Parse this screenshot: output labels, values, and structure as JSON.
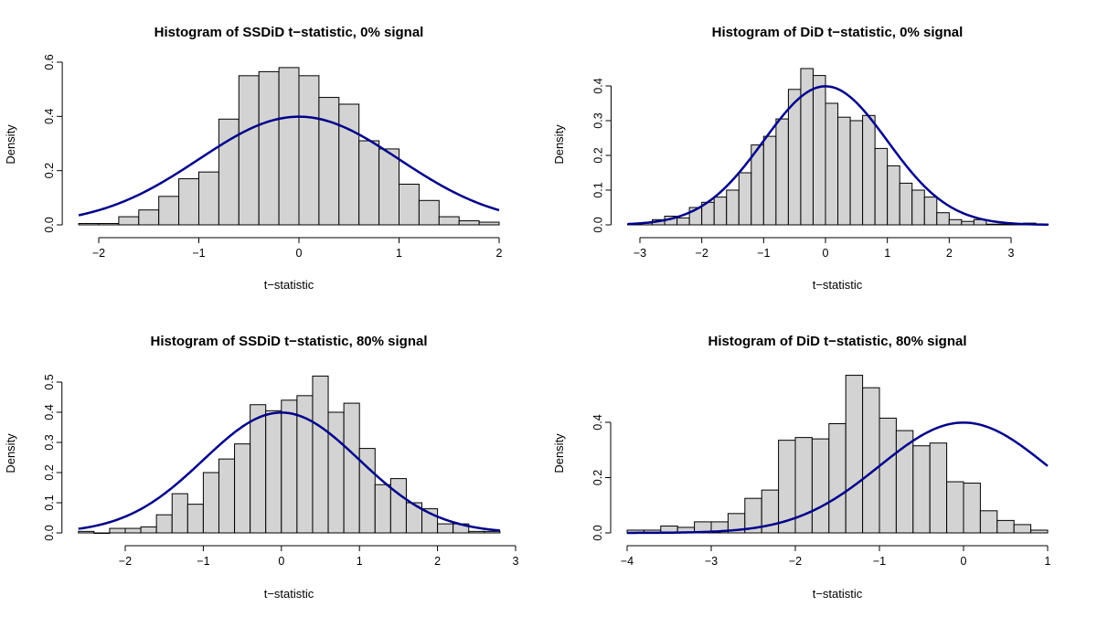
{
  "chart_data": [
    {
      "type": "histogram",
      "title": "Histogram of SSDiD t−statistic, 0% signal",
      "xlabel": "t−statistic",
      "ylabel": "Density",
      "xlim": [
        -2.2,
        2
      ],
      "ylim": [
        0,
        0.6
      ],
      "xticks": [
        -2,
        -1,
        0,
        1,
        2
      ],
      "xtick_labels": [
        "−2",
        "−1",
        "0",
        "1",
        "2"
      ],
      "yticks": [
        0.0,
        0.2,
        0.4,
        0.6
      ],
      "ytick_labels": [
        "0.0",
        "0.2",
        "0.4",
        "0.6"
      ],
      "bin_start": -2.2,
      "bin_width": 0.2,
      "values": [
        0.005,
        0.005,
        0.03,
        0.055,
        0.105,
        0.17,
        0.195,
        0.39,
        0.55,
        0.565,
        0.58,
        0.55,
        0.47,
        0.445,
        0.31,
        0.28,
        0.15,
        0.09,
        0.03,
        0.015,
        0.01
      ],
      "curve": "standard normal density"
    },
    {
      "type": "histogram",
      "title": "Histogram of DiD t−statistic, 0% signal",
      "xlabel": "t−statistic",
      "ylabel": "Density",
      "xlim": [
        -3.2,
        3.6
      ],
      "ylim": [
        0,
        0.4
      ],
      "xticks": [
        -3,
        -2,
        -1,
        0,
        1,
        2,
        3
      ],
      "xtick_labels": [
        "−3",
        "−2",
        "−1",
        "0",
        "1",
        "2",
        "3"
      ],
      "yticks": [
        0.0,
        0.1,
        0.2,
        0.3,
        0.4
      ],
      "ytick_labels": [
        "0.0",
        "0.1",
        "0.2",
        "0.3",
        "0.4"
      ],
      "bin_start": -3.2,
      "bin_width": 0.2,
      "values": [
        0.002,
        0.005,
        0.015,
        0.025,
        0.02,
        0.05,
        0.065,
        0.08,
        0.1,
        0.15,
        0.23,
        0.255,
        0.305,
        0.39,
        0.45,
        0.43,
        0.35,
        0.31,
        0.3,
        0.315,
        0.22,
        0.17,
        0.12,
        0.1,
        0.08,
        0.035,
        0.015,
        0.01,
        0.015,
        0.002,
        0.002,
        0.002,
        0.005,
        0.002
      ],
      "curve": "standard normal density"
    },
    {
      "type": "histogram",
      "title": "Histogram of SSDiD t−statistic, 80% signal",
      "xlabel": "t−statistic",
      "ylabel": "Density",
      "xlim": [
        -2.6,
        2.8
      ],
      "ylim": [
        0,
        0.5
      ],
      "xticks": [
        -2,
        -1,
        0,
        1,
        2,
        3
      ],
      "xtick_labels": [
        "−2",
        "−1",
        "0",
        "1",
        "2",
        "3"
      ],
      "yticks": [
        0.0,
        0.1,
        0.2,
        0.3,
        0.4,
        0.5
      ],
      "ytick_labels": [
        "0.0",
        "0.1",
        "0.2",
        "0.3",
        "0.4",
        "0.5"
      ],
      "bin_start": -2.6,
      "bin_width": 0.2,
      "values": [
        0.005,
        0.0,
        0.015,
        0.015,
        0.02,
        0.06,
        0.13,
        0.095,
        0.2,
        0.245,
        0.295,
        0.425,
        0.405,
        0.44,
        0.455,
        0.52,
        0.4,
        0.43,
        0.28,
        0.16,
        0.18,
        0.1,
        0.08,
        0.03,
        0.03,
        0.005,
        0.005
      ],
      "curve": "standard normal density"
    },
    {
      "type": "histogram",
      "title": "Histogram of DiD t−statistic, 80% signal",
      "xlabel": "t−statistic",
      "ylabel": "Density",
      "xlim": [
        -4,
        1
      ],
      "ylim": [
        0,
        0.5
      ],
      "xticks": [
        -4,
        -3,
        -2,
        -1,
        0,
        1
      ],
      "xtick_labels": [
        "−4",
        "−3",
        "−2",
        "−1",
        "0",
        "1"
      ],
      "yticks": [
        0.0,
        0.2,
        0.4
      ],
      "ytick_labels": [
        "0.0",
        "0.2",
        "0.4"
      ],
      "bin_start": -4,
      "bin_width": 0.2,
      "values": [
        0.01,
        0.01,
        0.025,
        0.02,
        0.04,
        0.04,
        0.07,
        0.125,
        0.155,
        0.335,
        0.345,
        0.34,
        0.395,
        0.57,
        0.525,
        0.415,
        0.37,
        0.315,
        0.325,
        0.185,
        0.18,
        0.08,
        0.045,
        0.03,
        0.01
      ],
      "curve": "standard normal density"
    }
  ]
}
